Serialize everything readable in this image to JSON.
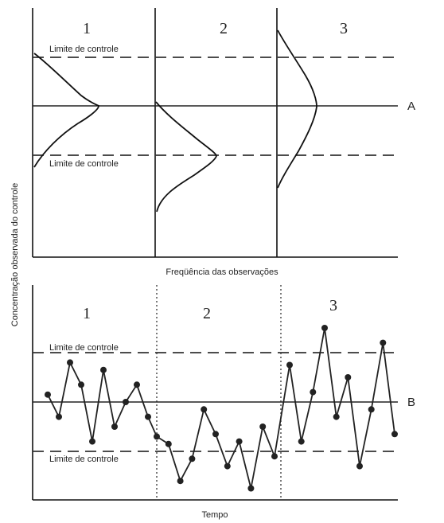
{
  "y_axis_label": "Concentração observada do controle",
  "top_panel": {
    "x_axis_label": "Freqüência das observações",
    "upper_limit_label": "Limite de controle",
    "lower_limit_label": "Limite de controle",
    "center_label": "A",
    "sections": [
      "1",
      "2",
      "3"
    ]
  },
  "bottom_panel": {
    "x_axis_label": "Tempo",
    "upper_limit_label": "Limite de controle",
    "lower_limit_label": "Limite de controle",
    "center_label": "B",
    "sections": [
      "1",
      "2",
      "3"
    ]
  },
  "chart_data": {
    "type": "line",
    "xlabel": "Tempo",
    "ylabel": "Concentração observada do controle",
    "ylim": [
      -2.4,
      3.6
    ],
    "center": 0,
    "control_limits": [
      -2,
      2
    ],
    "groups": [
      {
        "label": "1",
        "values": [
          0.3,
          -0.6,
          1.6,
          0.7,
          -1.6,
          1.3,
          -1.0,
          0.0,
          0.7,
          -0.6
        ]
      },
      {
        "label": "2",
        "values": [
          -1.4,
          -1.7,
          -3.2,
          -2.3,
          -0.3,
          -1.3,
          -2.6,
          -1.6,
          -3.5,
          -1.0,
          -2.2
        ]
      },
      {
        "label": "3",
        "values": [
          1.5,
          -1.6,
          0.4,
          3.0,
          -0.6,
          1.0,
          -2.6,
          -0.3,
          2.4,
          -1.3
        ]
      }
    ]
  }
}
